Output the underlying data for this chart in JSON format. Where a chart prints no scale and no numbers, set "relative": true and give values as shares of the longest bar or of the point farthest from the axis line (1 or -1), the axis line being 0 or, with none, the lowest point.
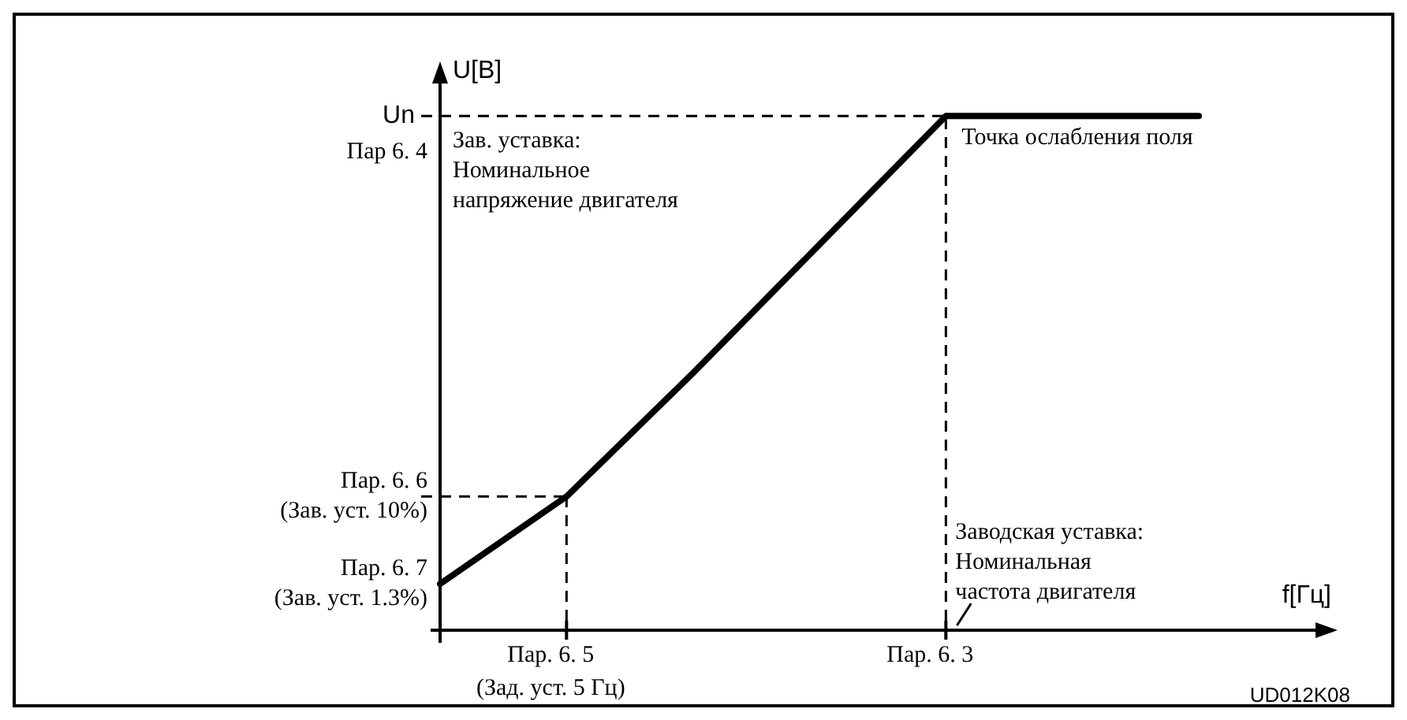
{
  "chart_data": {
    "type": "line",
    "relative": true,
    "xlabel": "f[Гц]",
    "ylabel": "U[В]",
    "categories": [
      null,
      null,
      null,
      null,
      null,
      null,
      null
    ],
    "series": [
      {
        "color": "#000000",
        "values": [
          0.09,
          0.26,
          0.5,
          0.75,
          1,
          1,
          1
        ]
      }
    ],
    "annotations": [
      "Un",
      "Пар 6. 4",
      "Пар. 6. 6\n(Зав. уст. 10%)",
      "Пар. 6. 7\n(Зав. уст. 1.3%)",
      "Пар. 6. 5\n(Зад. уст. 5 Гц)",
      "Пар. 6. 3",
      "Точка ослабления поля",
      "Зав. уставка:\nНоминальное\nнапряжение двигателя",
      "Заводская уставка:\nНоминальная\nчастота двигателя",
      "UD012K08"
    ]
  }
}
